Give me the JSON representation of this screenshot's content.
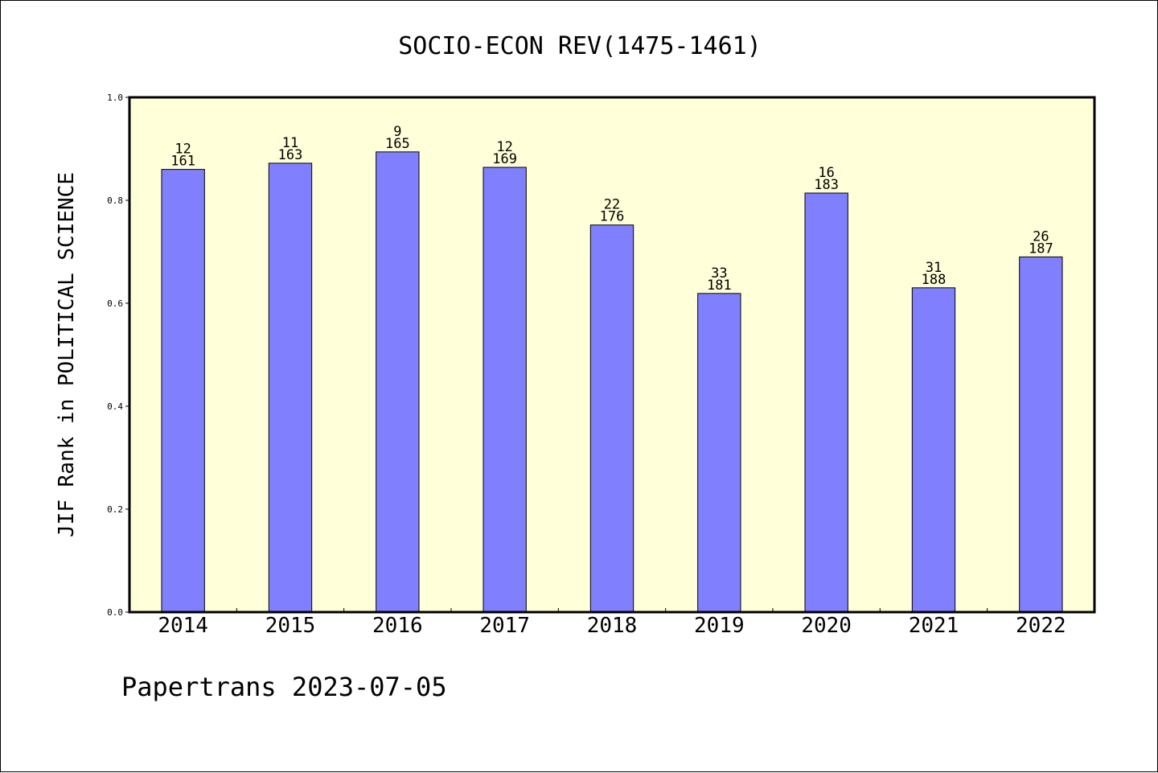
{
  "chart_data": {
    "type": "bar",
    "title": "SOCIO-ECON REV(1475-1461)",
    "ylabel": "JIF Rank in POLITICAL SCIENCE",
    "xlabel": "",
    "ylim": [
      0.0,
      1.0
    ],
    "yticks": [
      "0.0",
      "0.2",
      "0.4",
      "0.6",
      "0.8",
      "1.0"
    ],
    "categories": [
      "2014",
      "2015",
      "2016",
      "2017",
      "2018",
      "2019",
      "2020",
      "2021",
      "2022"
    ],
    "values": [
      0.86,
      0.872,
      0.894,
      0.864,
      0.752,
      0.619,
      0.814,
      0.63,
      0.69
    ],
    "rank": [
      "12",
      "11",
      "9",
      "12",
      "22",
      "33",
      "16",
      "31",
      "26"
    ],
    "total": [
      "161",
      "163",
      "165",
      "169",
      "176",
      "181",
      "183",
      "188",
      "187"
    ],
    "grid": false,
    "colors": {
      "plot_background": "#ffffd9",
      "bar": "#8080ff",
      "axis": "#000000"
    }
  },
  "footer": {
    "text": "Papertrans 2023-07-05"
  }
}
